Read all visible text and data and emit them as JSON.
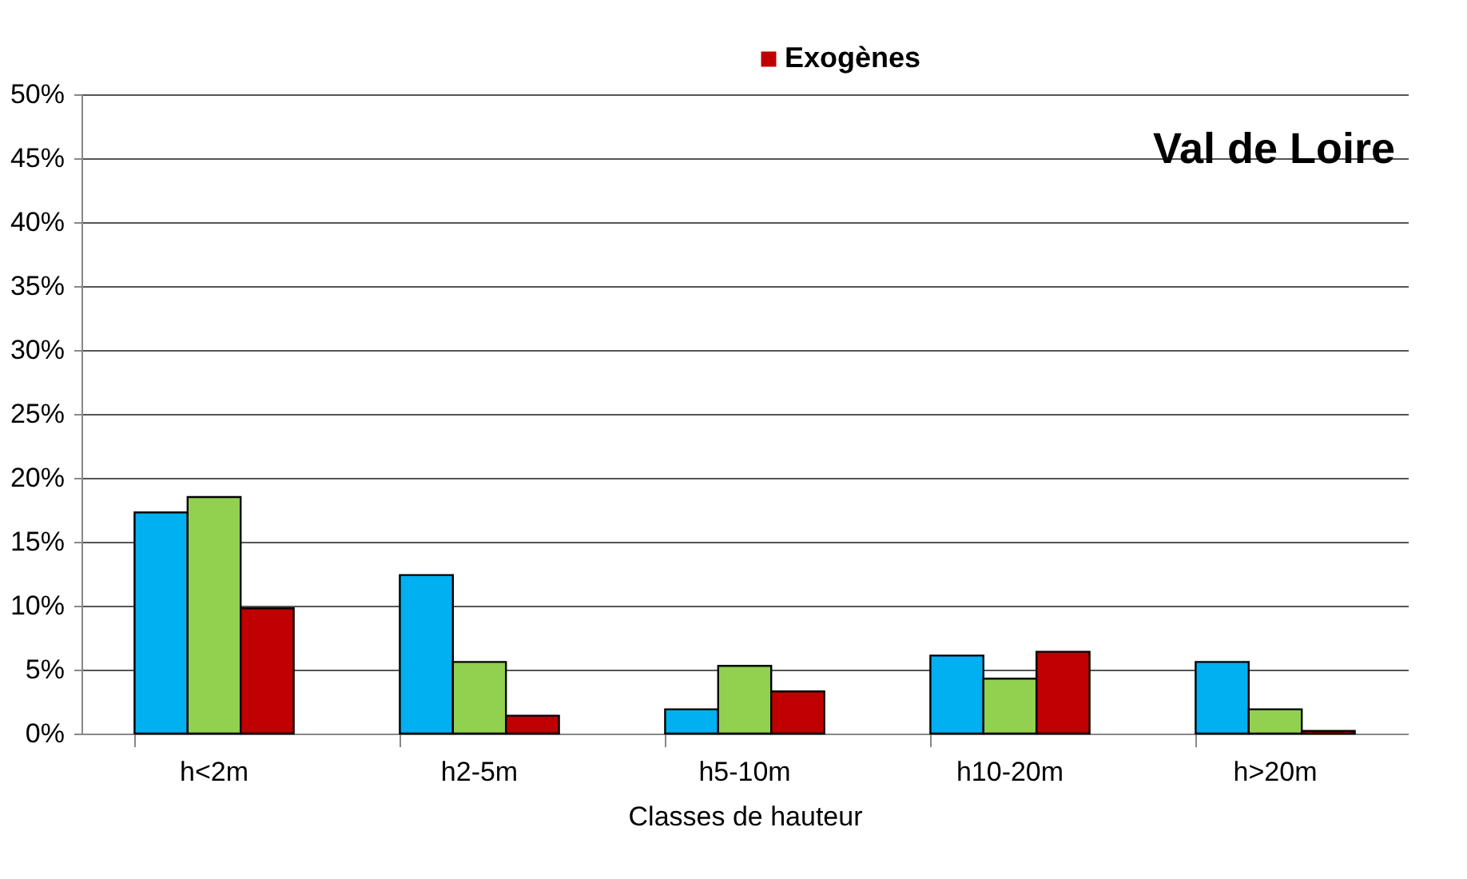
{
  "chart_data": {
    "type": "bar",
    "xlabel": "Classes de hauteur",
    "categories": [
      "h<2m",
      "h2-5m",
      "h5-10m",
      "h10-20m",
      "h>20m"
    ],
    "series": [
      {
        "color": "#00b0f0",
        "values": [
          17.3,
          12.4,
          1.9,
          6.1,
          5.6
        ]
      },
      {
        "color": "#92d050",
        "values": [
          18.5,
          5.6,
          5.3,
          4.3,
          1.9
        ]
      },
      {
        "name": "Exogènes",
        "color": "#c00000",
        "values": [
          9.8,
          1.4,
          3.3,
          6.4,
          0.2
        ]
      }
    ],
    "ylim": [
      0,
      50
    ],
    "yticks": [
      {
        "value": 0,
        "label": "0%"
      },
      {
        "value": 5,
        "label": "5%"
      },
      {
        "value": 10,
        "label": "10%"
      },
      {
        "value": 15,
        "label": "15%"
      },
      {
        "value": 20,
        "label": "20%"
      },
      {
        "value": 25,
        "label": "25%"
      },
      {
        "value": 30,
        "label": "30%"
      },
      {
        "value": 35,
        "label": "35%"
      },
      {
        "value": 40,
        "label": "40%"
      },
      {
        "value": 45,
        "label": "45%"
      },
      {
        "value": 50,
        "label": "50%"
      }
    ],
    "annotations": [
      "Val de Loire"
    ],
    "grid": "y",
    "legend": "top"
  }
}
